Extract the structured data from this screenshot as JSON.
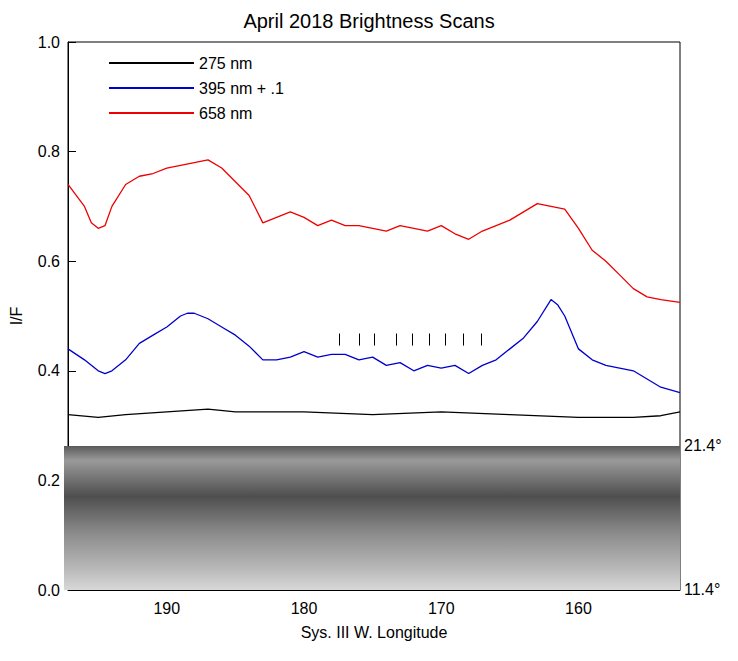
{
  "chart_data": {
    "type": "line",
    "title": "April 2018 Brightness Scans",
    "x_label": "Sys. III W. Longitude",
    "y_label": "I/F",
    "xlim": [
      197.2,
      152.6
    ],
    "xticks": [
      190,
      180,
      170,
      160
    ],
    "ylim": [
      0,
      1
    ],
    "yticks": [
      {
        "value": 0,
        "label": "0.0"
      },
      0.2,
      0.4,
      0.6,
      0.8,
      {
        "value": 1,
        "label": "1.0"
      }
    ],
    "grid": false,
    "legend": "upper left",
    "series": [
      {
        "name": "275 nm",
        "color": "#000000",
        "x": [
          197.2,
          195,
          193,
          190,
          187,
          185,
          180,
          175,
          170,
          165,
          160,
          156,
          154,
          152.6
        ],
        "values": [
          0.32,
          0.315,
          0.32,
          0.325,
          0.33,
          0.325,
          0.325,
          0.32,
          0.325,
          0.32,
          0.315,
          0.315,
          0.318,
          0.325
        ]
      },
      {
        "name": "395 nm + .1",
        "color": "#0000cc",
        "x": [
          197.2,
          196,
          195,
          194.5,
          194,
          193,
          192,
          191,
          190,
          189,
          188.5,
          188,
          187,
          186,
          185,
          184,
          183,
          182,
          181,
          180,
          179,
          178,
          177,
          176,
          175,
          174,
          173,
          172,
          171,
          170,
          169,
          168,
          167,
          166,
          165,
          164,
          163,
          162,
          161.5,
          161,
          160,
          159,
          158,
          157,
          156,
          155,
          154,
          152.6
        ],
        "values": [
          0.44,
          0.42,
          0.4,
          0.395,
          0.4,
          0.42,
          0.45,
          0.465,
          0.48,
          0.5,
          0.505,
          0.505,
          0.495,
          0.48,
          0.465,
          0.445,
          0.42,
          0.42,
          0.425,
          0.435,
          0.425,
          0.43,
          0.43,
          0.42,
          0.425,
          0.41,
          0.415,
          0.4,
          0.41,
          0.405,
          0.41,
          0.395,
          0.41,
          0.42,
          0.44,
          0.46,
          0.49,
          0.53,
          0.52,
          0.5,
          0.44,
          0.42,
          0.41,
          0.405,
          0.4,
          0.385,
          0.37,
          0.36
        ]
      },
      {
        "name": "658 nm",
        "color": "#ee0000",
        "x": [
          197.2,
          196,
          195.5,
          195,
          194.5,
          194,
          193,
          192,
          191,
          190,
          189,
          188,
          187,
          186,
          185,
          184,
          183,
          182,
          181,
          180,
          179,
          178,
          177,
          176,
          175,
          174,
          173,
          172,
          171,
          170,
          169,
          168,
          167,
          166,
          165,
          164,
          163,
          162,
          161,
          160,
          159,
          158,
          157,
          156,
          155,
          154,
          152.6
        ],
        "values": [
          0.74,
          0.7,
          0.67,
          0.66,
          0.665,
          0.7,
          0.74,
          0.755,
          0.76,
          0.77,
          0.775,
          0.78,
          0.785,
          0.77,
          0.745,
          0.72,
          0.67,
          0.68,
          0.69,
          0.68,
          0.665,
          0.675,
          0.665,
          0.665,
          0.66,
          0.655,
          0.665,
          0.66,
          0.655,
          0.665,
          0.65,
          0.64,
          0.655,
          0.665,
          0.675,
          0.69,
          0.705,
          0.7,
          0.695,
          0.66,
          0.62,
          0.6,
          0.575,
          0.55,
          0.535,
          0.53,
          0.525
        ]
      }
    ],
    "annotations": {
      "feature_ticks": {
        "x": [
          177.4,
          176.0,
          174.9,
          173.3,
          172.1,
          170.9,
          169.7,
          168.4,
          167.1
        ],
        "y": [
          0.446,
          0.468
        ]
      },
      "latitude_labels": {
        "top": "21.4°",
        "bottom": "11.4°"
      }
    }
  }
}
